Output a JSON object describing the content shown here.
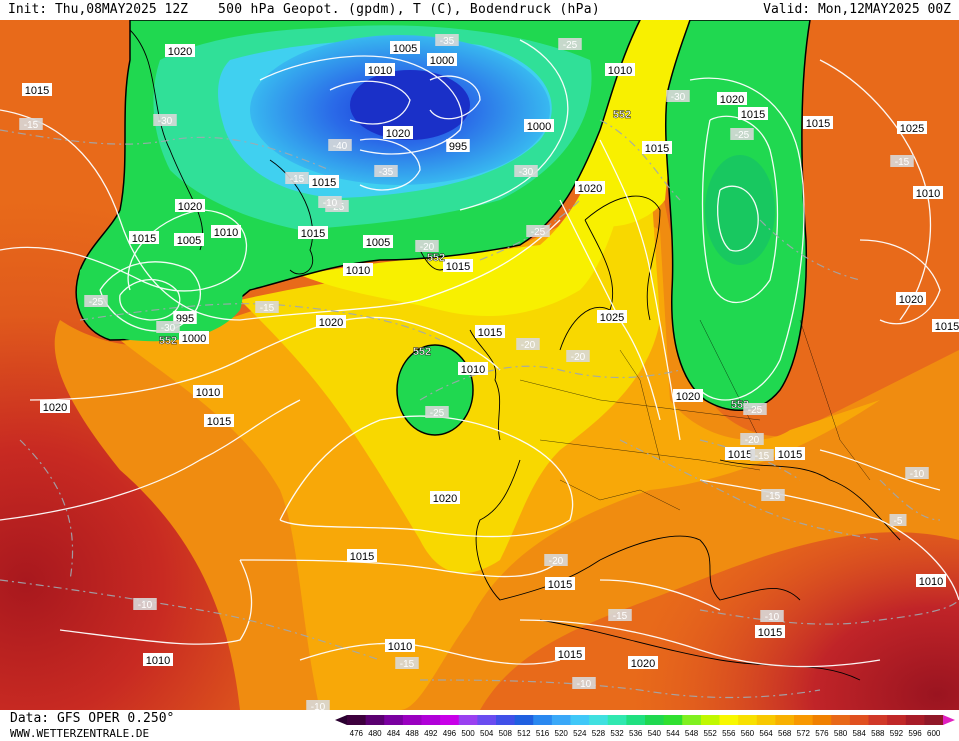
{
  "header": {
    "init": "Init: Thu,08MAY2025 12Z",
    "title": "500 hPa Geopot. (gpdm), T (C), Bodendruck (hPa)",
    "valid": "Valid: Mon,12MAY2025 00Z"
  },
  "footer": {
    "data_source": "Data: GFS OPER 0.250°",
    "website": "WWW.WETTERZENTRALE.DE"
  },
  "colorbar": {
    "labels": [
      "476",
      "480",
      "484",
      "488",
      "492",
      "496",
      "500",
      "504",
      "508",
      "512",
      "516",
      "520",
      "524",
      "528",
      "532",
      "536",
      "540",
      "544",
      "548",
      "552",
      "556",
      "560",
      "564",
      "568",
      "572",
      "576",
      "580",
      "584",
      "588",
      "592",
      "596",
      "600"
    ],
    "colors": [
      "#3d003d",
      "#5a0070",
      "#7a00a0",
      "#9a00c0",
      "#b000d8",
      "#c800e8",
      "#9a40f0",
      "#6a4cf0",
      "#4050e8",
      "#2060e0",
      "#2a88f0",
      "#3aa8f8",
      "#40c8f8",
      "#40e0e0",
      "#30e8b0",
      "#20e080",
      "#20d850",
      "#30e030",
      "#80f020",
      "#c0f800",
      "#f8f800",
      "#f8e000",
      "#f8c800",
      "#f8b000",
      "#f89800",
      "#f08000",
      "#e86818",
      "#e05020",
      "#d03828",
      "#c02828",
      "#a81c28",
      "#901828"
    ]
  },
  "isobar_labels": [
    "1020",
    "1015",
    "1005",
    "1000",
    "1010",
    "1020",
    "995",
    "1000",
    "1015",
    "1020",
    "1015",
    "1010",
    "1005",
    "1015",
    "1005",
    "1010",
    "995",
    "1000",
    "1015",
    "1020",
    "1010",
    "1015",
    "1020",
    "1015",
    "1025",
    "1020",
    "1015",
    "1015",
    "1010",
    "1020",
    "1015",
    "1010",
    "1015",
    "1020",
    "1020",
    "1015",
    "1015",
    "1010",
    "1015",
    "1020",
    "1015",
    "1010",
    "1010",
    "1025",
    "1020",
    "1015",
    "1015",
    "1010"
  ],
  "geopotential_labels": [
    "552",
    "552",
    "552",
    "552",
    "552"
  ],
  "temperature_labels": [
    "-35",
    "-25",
    "-30",
    "-30",
    "-40",
    "-35",
    "-30",
    "-25",
    "-25",
    "-20",
    "-25",
    "-30",
    "-15",
    "-15",
    "-25",
    "-15",
    "-20",
    "-20",
    "-25",
    "-25",
    "-20",
    "-15",
    "-10",
    "-5",
    "-20",
    "-15",
    "-10",
    "-15",
    "-10",
    "-10",
    "-10",
    "-15",
    "-15",
    "-10"
  ]
}
